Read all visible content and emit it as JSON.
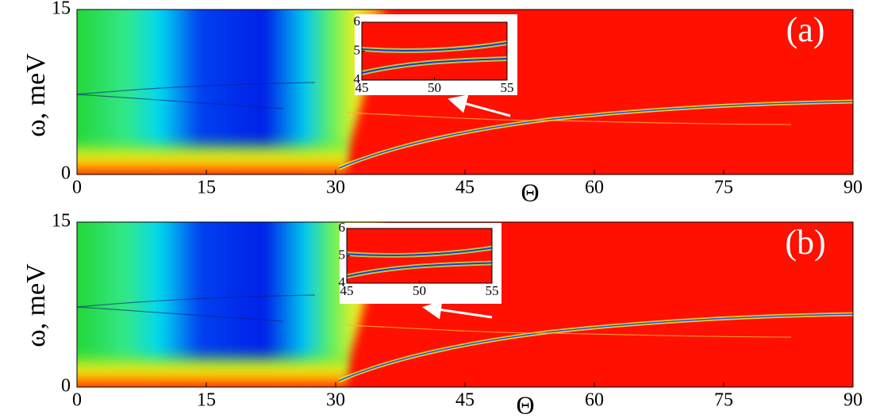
{
  "chart_data": [
    {
      "type": "heatmap",
      "panel_label": "(a)",
      "xlabel": "Θ",
      "ylabel": "ω, meV",
      "xlim": [
        0,
        90
      ],
      "ylim": [
        0,
        15
      ],
      "xticks": [
        0,
        15,
        30,
        45,
        60,
        75,
        90
      ],
      "yticks": [
        0,
        15
      ],
      "inset": {
        "xlim": [
          45,
          55
        ],
        "ylim": [
          4,
          6
        ],
        "xticks": [
          45,
          50,
          55
        ],
        "yticks": [
          4,
          5,
          6
        ]
      }
    },
    {
      "type": "heatmap",
      "panel_label": "(b)",
      "xlabel": "Θ",
      "ylabel": "ω, meV",
      "xlim": [
        0,
        90
      ],
      "ylim": [
        0,
        15
      ],
      "xticks": [
        0,
        15,
        30,
        45,
        60,
        75,
        90
      ],
      "yticks": [
        0,
        15
      ],
      "inset": {
        "xlim": [
          45,
          55
        ],
        "ylim": [
          4,
          6
        ],
        "xticks": [
          45,
          50,
          55
        ],
        "yticks": [
          4,
          5,
          6
        ]
      }
    }
  ]
}
